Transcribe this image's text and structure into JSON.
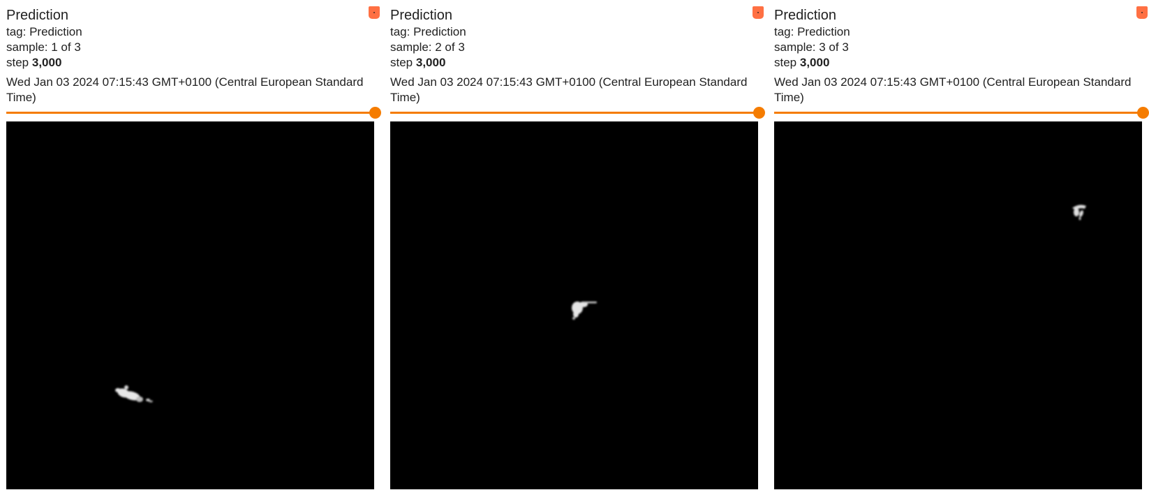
{
  "cards": [
    {
      "title": "Prediction",
      "tag": "tag: Prediction",
      "sample": "sample: 1 of 3",
      "step_prefix": "step ",
      "step_value": "3,000",
      "timestamp": "Wed Jan 03 2024 07:15:43 GMT+0100 (Central European Standard Time)",
      "pin_icon": "pin-icon",
      "slider_color": "#f57c00"
    },
    {
      "title": "Prediction",
      "tag": "tag: Prediction",
      "sample": "sample: 2 of 3",
      "step_prefix": "step ",
      "step_value": "3,000",
      "timestamp": "Wed Jan 03 2024 07:15:43 GMT+0100 (Central European Standard Time)",
      "pin_icon": "pin-icon",
      "slider_color": "#f57c00"
    },
    {
      "title": "Prediction",
      "tag": "tag: Prediction",
      "sample": "sample: 3 of 3",
      "step_prefix": "step ",
      "step_value": "3,000",
      "timestamp": "Wed Jan 03 2024 07:15:43 GMT+0100 (Central European Standard Time)",
      "pin_icon": "pin-icon",
      "slider_color": "#f57c00"
    }
  ]
}
